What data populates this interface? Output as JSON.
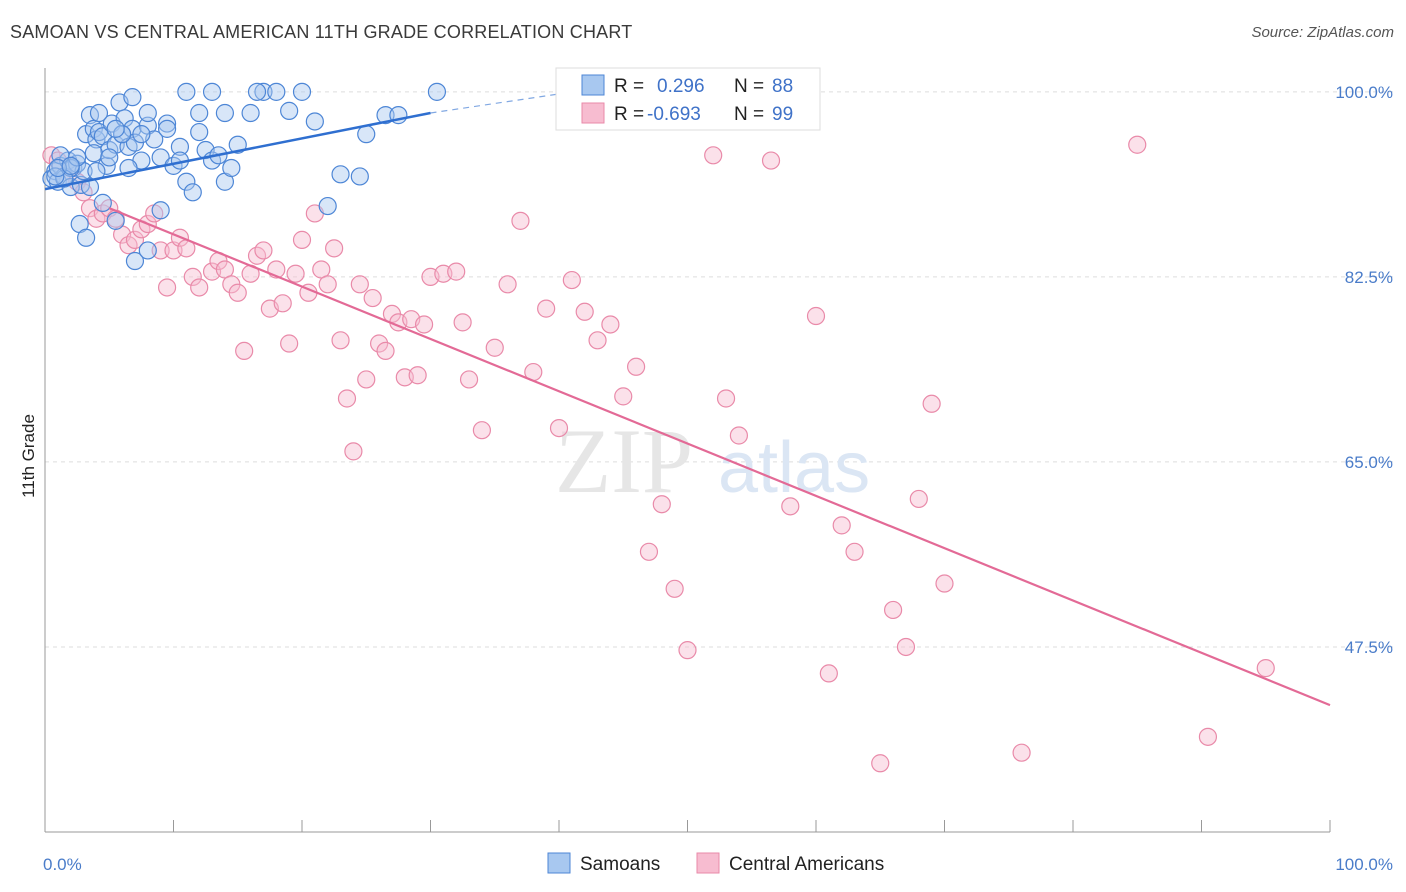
{
  "title": "SAMOAN VS CENTRAL AMERICAN 11TH GRADE CORRELATION CHART",
  "source": "Source: ZipAtlas.com",
  "watermark": {
    "zip": "ZIP",
    "atlas": "atlas"
  },
  "colors": {
    "blue_fill": "#a8c8f0",
    "blue_stroke": "#4d86d6",
    "blue_line": "#2f6fd0",
    "pink_fill": "#f7bcd0",
    "pink_stroke": "#e98aa9",
    "pink_line": "#e36a96",
    "tick": "#4a7cc9",
    "grid": "#dddddd"
  },
  "chart_data": {
    "type": "scatter",
    "title": "SAMOAN VS CENTRAL AMERICAN 11TH GRADE CORRELATION CHART",
    "xlabel": "",
    "ylabel": "11th Grade",
    "xlim": [
      0,
      100
    ],
    "ylim": [
      30,
      101.5
    ],
    "x_tick_labels": [
      "0.0%",
      "100.0%"
    ],
    "y_ticks": [
      47.5,
      65.0,
      82.5,
      100.0
    ],
    "y_tick_labels": [
      "47.5%",
      "65.0%",
      "82.5%",
      "100.0%"
    ],
    "grid": true,
    "legend_position": "top-center",
    "legend": [
      {
        "r_label": "R =",
        "r_value": "0.296",
        "n_label": "N =",
        "n_value": "88"
      },
      {
        "r_label": "R =",
        "r_value": "-0.693",
        "n_label": "N =",
        "n_value": "99"
      }
    ],
    "bottom_legend": [
      "Samoans",
      "Central Americans"
    ],
    "series": [
      {
        "name": "Samoans",
        "trend": {
          "x": [
            0,
            30
          ],
          "y": [
            90.8,
            98.0
          ],
          "dashed_to": [
            40,
            99.8
          ]
        },
        "points": [
          [
            0.5,
            91.8
          ],
          [
            0.8,
            92.5
          ],
          [
            1.0,
            91.5
          ],
          [
            1.2,
            93.0
          ],
          [
            1.5,
            92.0
          ],
          [
            1.8,
            93.5
          ],
          [
            2.0,
            91.0
          ],
          [
            2.2,
            92.8
          ],
          [
            2.5,
            93.2
          ],
          [
            2.8,
            91.2
          ],
          [
            3.0,
            92.5
          ],
          [
            3.2,
            96.0
          ],
          [
            3.5,
            97.8
          ],
          [
            3.8,
            96.5
          ],
          [
            4.0,
            95.5
          ],
          [
            4.2,
            96.2
          ],
          [
            4.5,
            95.8
          ],
          [
            4.8,
            93.0
          ],
          [
            5.0,
            94.5
          ],
          [
            5.2,
            97.0
          ],
          [
            5.5,
            95.0
          ],
          [
            5.8,
            99.0
          ],
          [
            6.0,
            96.0
          ],
          [
            6.2,
            97.5
          ],
          [
            6.5,
            94.8
          ],
          [
            6.8,
            96.5
          ],
          [
            7.0,
            95.2
          ],
          [
            7.5,
            93.5
          ],
          [
            8.0,
            96.8
          ],
          [
            8.5,
            95.5
          ],
          [
            9.0,
            93.8
          ],
          [
            9.5,
            97.0
          ],
          [
            10.0,
            93.0
          ],
          [
            10.5,
            94.8
          ],
          [
            11.0,
            91.5
          ],
          [
            11.5,
            90.5
          ],
          [
            12.0,
            96.2
          ],
          [
            12.5,
            94.5
          ],
          [
            13.0,
            93.5
          ],
          [
            13.5,
            94.0
          ],
          [
            14.0,
            91.5
          ],
          [
            14.5,
            92.8
          ],
          [
            15.0,
            95.0
          ],
          [
            16.0,
            98.0
          ],
          [
            17.0,
            100.0
          ],
          [
            18.0,
            100.0
          ],
          [
            19.0,
            98.2
          ],
          [
            20.0,
            100.0
          ],
          [
            21.0,
            97.2
          ],
          [
            22.0,
            89.2
          ],
          [
            23.0,
            92.2
          ],
          [
            24.5,
            92.0
          ],
          [
            25.0,
            96.0
          ],
          [
            26.5,
            97.8
          ],
          [
            27.5,
            97.8
          ],
          [
            30.5,
            100.0
          ],
          [
            2.7,
            87.5
          ],
          [
            3.2,
            86.2
          ],
          [
            4.5,
            89.5
          ],
          [
            5.5,
            87.8
          ],
          [
            7.0,
            84.0
          ],
          [
            8.0,
            85.0
          ],
          [
            9.0,
            88.8
          ],
          [
            9.5,
            96.5
          ],
          [
            2.0,
            92.8
          ],
          [
            1.5,
            91.8
          ],
          [
            3.5,
            91.0
          ],
          [
            4.0,
            92.5
          ],
          [
            6.0,
            96.0
          ],
          [
            8.0,
            98.0
          ],
          [
            11.0,
            100.0
          ],
          [
            13.0,
            100.0
          ],
          [
            0.8,
            92.0
          ],
          [
            1.2,
            94.0
          ],
          [
            2.5,
            93.8
          ],
          [
            3.8,
            94.2
          ],
          [
            5.0,
            93.8
          ],
          [
            6.5,
            92.8
          ],
          [
            7.5,
            96.0
          ],
          [
            10.5,
            93.5
          ],
          [
            12.0,
            98.0
          ],
          [
            14.0,
            98.0
          ],
          [
            16.5,
            100.0
          ],
          [
            4.2,
            98.0
          ],
          [
            5.5,
            96.5
          ],
          [
            6.8,
            99.5
          ],
          [
            1.0,
            92.8
          ],
          [
            2.0,
            93.0
          ]
        ]
      },
      {
        "name": "Central Americans",
        "trend": {
          "x": [
            5,
            100
          ],
          "y": [
            89.0,
            42.0
          ]
        },
        "points": [
          [
            0.5,
            94.0
          ],
          [
            1.0,
            93.5
          ],
          [
            1.5,
            92.0
          ],
          [
            2.0,
            93.0
          ],
          [
            2.5,
            91.5
          ],
          [
            3.0,
            90.5
          ],
          [
            3.5,
            89.0
          ],
          [
            4.0,
            88.0
          ],
          [
            4.5,
            88.5
          ],
          [
            5.0,
            89.0
          ],
          [
            5.5,
            88.0
          ],
          [
            6.0,
            86.5
          ],
          [
            6.5,
            85.5
          ],
          [
            7.0,
            86.0
          ],
          [
            7.5,
            87.0
          ],
          [
            8.0,
            87.5
          ],
          [
            8.5,
            88.5
          ],
          [
            9.0,
            85.0
          ],
          [
            9.5,
            81.5
          ],
          [
            10.0,
            85.0
          ],
          [
            10.5,
            86.2
          ],
          [
            11.0,
            85.2
          ],
          [
            11.5,
            82.5
          ],
          [
            12.0,
            81.5
          ],
          [
            13.0,
            83.0
          ],
          [
            13.5,
            84.0
          ],
          [
            14.0,
            83.2
          ],
          [
            14.5,
            81.8
          ],
          [
            15.0,
            81.0
          ],
          [
            15.5,
            75.5
          ],
          [
            16.0,
            82.8
          ],
          [
            16.5,
            84.5
          ],
          [
            17.0,
            85.0
          ],
          [
            17.5,
            79.5
          ],
          [
            18.0,
            83.2
          ],
          [
            18.5,
            80.0
          ],
          [
            19.0,
            76.2
          ],
          [
            19.5,
            82.8
          ],
          [
            20.0,
            86.0
          ],
          [
            20.5,
            81.0
          ],
          [
            21.0,
            88.5
          ],
          [
            21.5,
            83.2
          ],
          [
            22.0,
            81.8
          ],
          [
            22.5,
            85.2
          ],
          [
            23.0,
            76.5
          ],
          [
            23.5,
            71.0
          ],
          [
            24.0,
            66.0
          ],
          [
            24.5,
            81.8
          ],
          [
            25.0,
            72.8
          ],
          [
            25.5,
            80.5
          ],
          [
            26.0,
            76.2
          ],
          [
            26.5,
            75.5
          ],
          [
            27.0,
            79.0
          ],
          [
            27.5,
            78.2
          ],
          [
            28.0,
            73.0
          ],
          [
            28.5,
            78.5
          ],
          [
            29.0,
            73.2
          ],
          [
            29.5,
            78.0
          ],
          [
            30.0,
            82.5
          ],
          [
            31.0,
            82.8
          ],
          [
            32.0,
            83.0
          ],
          [
            32.5,
            78.2
          ],
          [
            33.0,
            72.8
          ],
          [
            34.0,
            68.0
          ],
          [
            35.0,
            75.8
          ],
          [
            36.0,
            81.8
          ],
          [
            37.0,
            87.8
          ],
          [
            38.0,
            73.5
          ],
          [
            39.0,
            79.5
          ],
          [
            40.0,
            68.2
          ],
          [
            41.0,
            82.2
          ],
          [
            42.0,
            79.2
          ],
          [
            43.0,
            76.5
          ],
          [
            44.0,
            78.0
          ],
          [
            45.0,
            71.2
          ],
          [
            46.0,
            74.0
          ],
          [
            48.0,
            61.0
          ],
          [
            47.0,
            56.5
          ],
          [
            49.0,
            53.0
          ],
          [
            50.0,
            47.2
          ],
          [
            52.0,
            94.0
          ],
          [
            53.0,
            71.0
          ],
          [
            54.0,
            67.5
          ],
          [
            56.5,
            93.5
          ],
          [
            58.0,
            60.8
          ],
          [
            60.0,
            78.8
          ],
          [
            61.0,
            45.0
          ],
          [
            62.0,
            59.0
          ],
          [
            63.0,
            56.5
          ],
          [
            65.0,
            36.5
          ],
          [
            66.0,
            51.0
          ],
          [
            67.0,
            47.5
          ],
          [
            68.0,
            61.5
          ],
          [
            69.0,
            70.5
          ],
          [
            70.0,
            53.5
          ],
          [
            76.0,
            37.5
          ],
          [
            90.5,
            39.0
          ],
          [
            85.0,
            95.0
          ],
          [
            95.0,
            45.5
          ]
        ]
      }
    ]
  }
}
